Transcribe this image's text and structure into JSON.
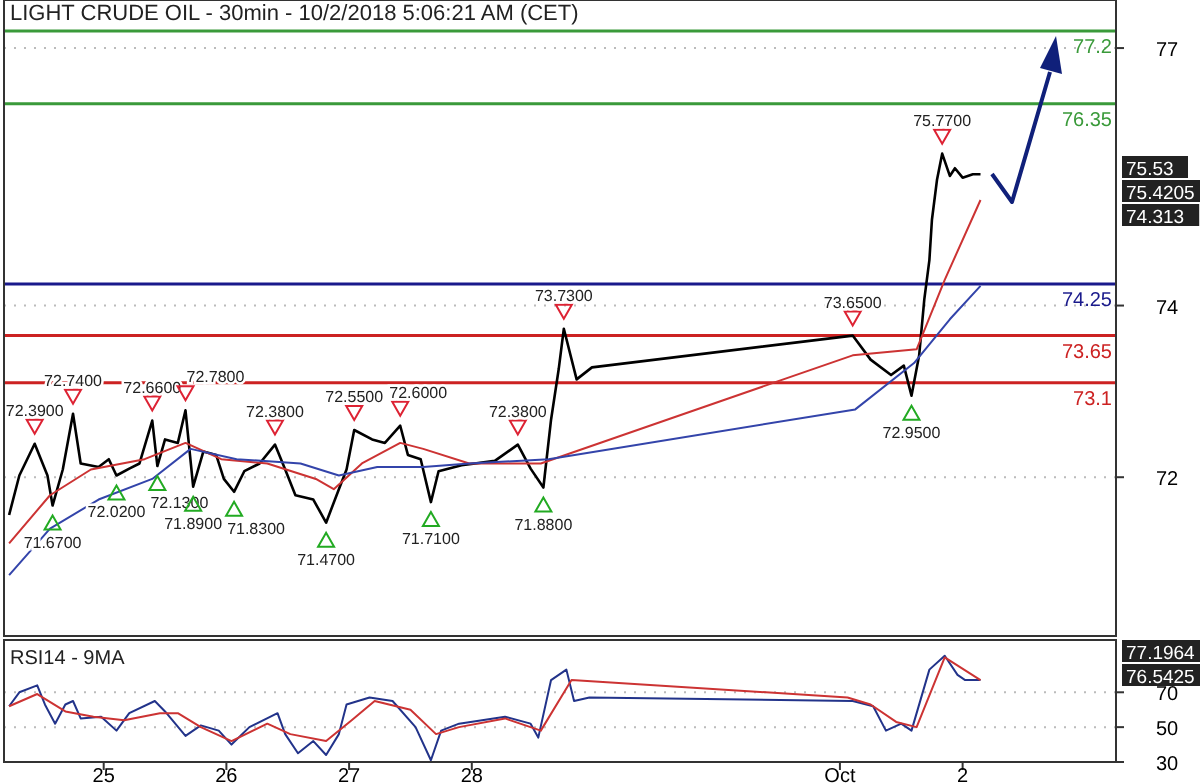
{
  "chart_data": [
    {
      "type": "line",
      "title": "LIGHT CRUDE OIL - 30min - 10/2/2018 5:06:21 AM (CET)",
      "xlim": [
        "2018-09-24T04:30",
        "2018-10-03T06:00"
      ],
      "tick_labels": "y",
      "ylim": [
        70.15,
        77.56
      ],
      "yticks": [
        72,
        74,
        77
      ],
      "grid": "y",
      "series": [
        {
          "color": "#000000",
          "x": [
            "2018-09-24T05:30",
            "2018-09-24T07:30",
            "2018-09-24T10:30",
            "2018-09-24T13:00",
            "2018-09-24T14:00",
            "2018-09-24T16:00",
            "2018-09-24T18:00",
            "2018-09-24T19:30",
            "2018-09-24T23:00",
            "2018-09-25T01:00",
            "2018-09-25T02:30",
            "2018-09-25T05:00",
            "2018-09-25T07:00",
            "2018-09-25T09:30",
            "2018-09-25T10:30",
            "2018-09-25T12:00",
            "2018-09-25T14:30",
            "2018-09-25T16:00",
            "2018-09-25T17:30",
            "2018-09-25T19:30",
            "2018-09-25T22:00",
            "2018-09-25T23:30",
            "2018-09-26T01:30",
            "2018-09-26T03:30",
            "2018-09-26T06:30",
            "2018-09-26T09:30",
            "2018-09-26T11:30",
            "2018-09-26T13:30",
            "2018-09-26T17:00",
            "2018-09-26T19:30",
            "2018-09-26T22:00",
            "2018-09-26T23:30",
            "2018-09-27T01:00",
            "2018-09-27T04:30",
            "2018-09-27T07:00",
            "2018-09-27T10:00",
            "2018-09-27T11:30",
            "2018-09-27T14:00",
            "2018-09-27T16:00",
            "2018-09-27T17:30",
            "2018-09-27T22:00",
            "2018-09-28T04:30",
            "2018-09-28T09:00",
            "2018-09-28T11:30",
            "2018-09-28T14:00",
            "2018-09-28T15:30",
            "2018-09-28T17:00",
            "2018-09-28T18:00",
            "2018-09-28T20:30",
            "2018-09-28T23:30",
            "2018-10-01T02:30",
            "2018-10-01T06:00",
            "2018-10-01T10:00",
            "2018-10-01T12:30",
            "2018-10-01T14:00",
            "2018-10-01T15:30",
            "2018-10-01T16:30",
            "2018-10-01T17:30",
            "2018-10-01T18:00",
            "2018-10-01T19:00",
            "2018-10-01T20:00",
            "2018-10-01T21:30",
            "2018-10-01T22:30",
            "2018-10-02T00:00",
            "2018-10-02T02:00",
            "2018-10-02T03:30"
          ],
          "values": [
            71.56,
            72.02,
            72.39,
            72.02,
            71.67,
            72.09,
            72.74,
            72.16,
            72.12,
            72.21,
            72.02,
            72.1,
            72.16,
            72.66,
            72.13,
            72.44,
            72.4,
            72.78,
            71.89,
            72.3,
            72.26,
            71.98,
            71.83,
            72.07,
            72.16,
            72.38,
            72.09,
            71.79,
            71.74,
            71.47,
            71.86,
            72.09,
            72.55,
            72.44,
            72.4,
            72.6,
            72.26,
            72.21,
            71.71,
            72.07,
            72.14,
            72.19,
            72.38,
            72.1,
            71.88,
            72.67,
            73.26,
            73.73,
            73.14,
            73.28,
            73.65,
            73.37,
            73.19,
            73.3,
            72.95,
            73.42,
            74.07,
            74.53,
            75.0,
            75.47,
            75.77,
            75.51,
            75.6,
            75.49,
            75.53,
            75.53
          ]
        },
        {
          "color": "#cc3333",
          "x": [
            "2018-09-24T05:30",
            "2018-09-24T13:30",
            "2018-09-24T21:30",
            "2018-09-25T08:00",
            "2018-09-25T16:00",
            "2018-09-25T23:00",
            "2018-09-26T08:00",
            "2018-09-26T17:30",
            "2018-09-26T21:00",
            "2018-09-27T02:30",
            "2018-09-27T10:00",
            "2018-09-27T14:30",
            "2018-09-27T23:30",
            "2018-09-28T13:30",
            "2018-10-01T02:30",
            "2018-10-01T15:00",
            "2018-10-01T20:30",
            "2018-10-02T03:30"
          ],
          "values": [
            71.23,
            71.79,
            72.09,
            72.21,
            72.4,
            72.21,
            72.16,
            71.98,
            71.86,
            72.16,
            72.4,
            72.33,
            72.16,
            72.16,
            73.42,
            73.49,
            74.3,
            75.23
          ]
        },
        {
          "color": "#3344aa",
          "x": [
            "2018-09-24T05:30",
            "2018-09-24T13:30",
            "2018-09-24T23:00",
            "2018-09-25T09:30",
            "2018-09-25T17:00",
            "2018-09-26T02:00",
            "2018-09-26T14:30",
            "2018-09-26T22:00",
            "2018-09-27T05:30",
            "2018-09-27T14:30",
            "2018-09-27T23:30",
            "2018-09-28T15:00",
            "2018-10-01T03:00",
            "2018-10-01T14:30",
            "2018-10-01T21:30",
            "2018-10-02T03:30"
          ],
          "values": [
            70.86,
            71.4,
            71.74,
            71.98,
            72.33,
            72.21,
            72.16,
            72.02,
            72.12,
            72.12,
            72.16,
            72.21,
            72.79,
            73.33,
            73.84,
            74.23
          ]
        }
      ],
      "ref_lines": [
        {
          "axis": "y",
          "value": 77.2,
          "label": "77.2",
          "color": "#3a9a3a"
        },
        {
          "axis": "y",
          "value": 76.35,
          "label": "76.35",
          "color": "#3a9a3a"
        },
        {
          "axis": "y",
          "value": 74.25,
          "label": "74.25",
          "color": "#1a1a8c"
        },
        {
          "axis": "y",
          "value": 73.65,
          "label": "73.65",
          "color": "#cc2222"
        },
        {
          "axis": "y",
          "value": 73.1,
          "label": "73.1",
          "color": "#cc2222"
        }
      ],
      "annotations": [
        {
          "text": "72.3900",
          "x": "2018-09-24T10:30",
          "y": 72.39
        },
        {
          "text": "71.6700",
          "x": "2018-09-24T14:00",
          "y": 71.67
        },
        {
          "text": "72.7400",
          "x": "2018-09-24T18:00",
          "y": 72.74
        },
        {
          "text": "72.0200",
          "x": "2018-09-25T02:30",
          "y": 72.02
        },
        {
          "text": "72.6600",
          "x": "2018-09-25T09:30",
          "y": 72.66
        },
        {
          "text": "72.1300",
          "x": "2018-09-25T10:30",
          "y": 72.13
        },
        {
          "text": "72.7800",
          "x": "2018-09-25T16:00",
          "y": 72.78
        },
        {
          "text": "71.8900",
          "x": "2018-09-25T17:30",
          "y": 71.89
        },
        {
          "text": "71.8300",
          "x": "2018-09-26T01:30",
          "y": 71.83
        },
        {
          "text": "72.3800",
          "x": "2018-09-26T09:30",
          "y": 72.38
        },
        {
          "text": "71.4700",
          "x": "2018-09-26T19:30",
          "y": 71.47
        },
        {
          "text": "72.5500",
          "x": "2018-09-27T01:00",
          "y": 72.55
        },
        {
          "text": "72.6000",
          "x": "2018-09-27T10:00",
          "y": 72.6
        },
        {
          "text": "71.7100",
          "x": "2018-09-27T16:00",
          "y": 71.71
        },
        {
          "text": "72.3800",
          "x": "2018-09-28T09:00",
          "y": 72.38
        },
        {
          "text": "71.8800",
          "x": "2018-09-28T14:00",
          "y": 71.88
        },
        {
          "text": "73.7300",
          "x": "2018-09-28T18:00",
          "y": 73.73
        },
        {
          "text": "73.6500",
          "x": "2018-10-01T02:30",
          "y": 73.65
        },
        {
          "text": "72.9500",
          "x": "2018-10-01T14:00",
          "y": 72.95
        },
        {
          "text": "75.7700",
          "x": "2018-10-01T20:00",
          "y": 75.77
        },
        "75.53",
        "75.4205",
        "74.313"
      ]
    },
    {
      "type": "line",
      "title": "RSI14 - 9MA",
      "xlim": [
        "2018-09-24T04:30",
        "2018-10-03T06:00"
      ],
      "xticks": [
        {
          "value": "2018-09-25",
          "label": "25"
        },
        {
          "value": "2018-09-26",
          "label": "26"
        },
        {
          "value": "2018-09-27",
          "label": "27"
        },
        {
          "value": "2018-09-28",
          "label": "28"
        },
        {
          "value": "2018-10-01",
          "label": "Oct"
        },
        {
          "value": "2018-10-02",
          "label": "2"
        }
      ],
      "ylim": [
        30,
        100
      ],
      "yticks": [
        30,
        50,
        70
      ],
      "grid": "y",
      "series": [
        {
          "color": "#22338a",
          "x": [
            "2018-09-24T05:30",
            "2018-09-24T07:30",
            "2018-09-24T11:00",
            "2018-09-24T12:30",
            "2018-09-24T14:30",
            "2018-09-24T16:30",
            "2018-09-24T18:00",
            "2018-09-24T19:30",
            "2018-09-24T23:30",
            "2018-09-25T02:30",
            "2018-09-25T05:00",
            "2018-09-25T10:00",
            "2018-09-25T12:00",
            "2018-09-25T16:00",
            "2018-09-25T19:00",
            "2018-09-25T22:30",
            "2018-09-26T01:00",
            "2018-09-26T04:30",
            "2018-09-26T10:00",
            "2018-09-26T11:30",
            "2018-09-26T14:00",
            "2018-09-26T17:00",
            "2018-09-26T19:30",
            "2018-09-26T22:00",
            "2018-09-26T23:30",
            "2018-09-27T04:00",
            "2018-09-27T08:30",
            "2018-09-27T13:00",
            "2018-09-27T16:00",
            "2018-09-27T18:00",
            "2018-09-27T21:30",
            "2018-09-28T02:00",
            "2018-09-28T06:30",
            "2018-09-28T11:30",
            "2018-09-28T13:00",
            "2018-09-28T15:30",
            "2018-09-28T18:30",
            "2018-09-28T20:00",
            "2018-09-28T23:00",
            "2018-10-01T02:30",
            "2018-10-01T06:30",
            "2018-10-01T09:00",
            "2018-10-01T12:00",
            "2018-10-01T14:00",
            "2018-10-01T17:30",
            "2018-10-01T20:30",
            "2018-10-01T23:00",
            "2018-10-02T00:30",
            "2018-10-02T03:30"
          ],
          "values": [
            62,
            70,
            74,
            63,
            52,
            63,
            65,
            55,
            56,
            48,
            58,
            65,
            59,
            45,
            51,
            48,
            40,
            50,
            58,
            46,
            35,
            42,
            34,
            46,
            63,
            67,
            65,
            50,
            31,
            48,
            52,
            54,
            56,
            52,
            44,
            77,
            83,
            65,
            67,
            65,
            62,
            48,
            52,
            48,
            83,
            91,
            80,
            77,
            77
          ]
        },
        {
          "color": "#cc3333",
          "x": [
            "2018-09-24T05:30",
            "2018-09-24T11:00",
            "2018-09-24T16:30",
            "2018-09-24T22:00",
            "2018-09-25T04:00",
            "2018-09-25T11:00",
            "2018-09-25T14:30",
            "2018-09-25T19:00",
            "2018-09-26T01:00",
            "2018-09-26T08:00",
            "2018-09-26T12:30",
            "2018-09-26T19:30",
            "2018-09-27T00:30",
            "2018-09-27T05:00",
            "2018-09-27T12:00",
            "2018-09-27T17:00",
            "2018-09-27T21:30",
            "2018-09-28T06:30",
            "2018-09-28T13:30",
            "2018-09-28T19:30",
            "2018-10-01T01:30",
            "2018-10-01T06:00",
            "2018-10-01T11:00",
            "2018-10-01T15:00",
            "2018-10-01T20:30",
            "2018-10-02T03:30"
          ],
          "values": [
            62,
            69,
            59,
            56,
            54,
            58,
            58,
            50,
            42,
            52,
            46,
            42,
            54,
            65,
            60,
            46,
            50,
            55,
            48,
            77,
            67,
            63,
            53,
            50,
            90,
            77
          ]
        }
      ],
      "annotations": [
        "77.1964",
        "76.5425"
      ]
    }
  ]
}
